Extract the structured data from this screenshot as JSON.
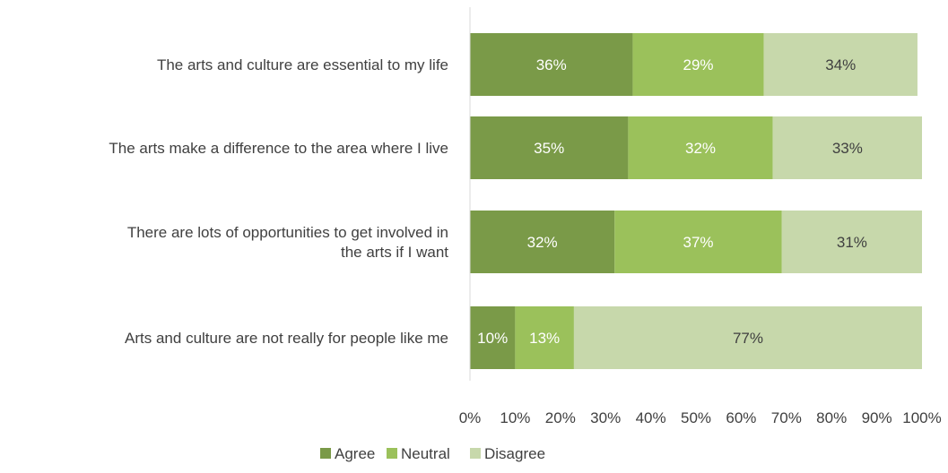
{
  "chart_data": {
    "type": "bar",
    "orientation": "horizontal",
    "stacked": true,
    "categories": [
      "The arts and culture are essential to my life",
      "The arts make a difference to the area where I live",
      "There are lots of opportunities to get involved in the arts if I want",
      "Arts and culture are not really for people like me"
    ],
    "category_lines": [
      [
        "The arts and culture are essential to my life"
      ],
      [
        "The arts make a difference to the area where I live"
      ],
      [
        "There are lots of opportunities to get involved in",
        "the arts if I want"
      ],
      [
        "Arts and culture are not really for people like me"
      ]
    ],
    "series": [
      {
        "name": "Agree",
        "color": "#7a9a48",
        "label_color": "#ffffff",
        "values": [
          36,
          35,
          32,
          10
        ],
        "labels": [
          "36%",
          "35%",
          "32%",
          "10%"
        ]
      },
      {
        "name": "Neutral",
        "color": "#9bc15b",
        "label_color": "#ffffff",
        "values": [
          29,
          32,
          37,
          13
        ],
        "labels": [
          "29%",
          "32%",
          "37%",
          "13%"
        ]
      },
      {
        "name": "Disagree",
        "color": "#c7d8ab",
        "label_color": "#404040",
        "values": [
          34,
          33,
          31,
          77
        ],
        "labels": [
          "34%",
          "33%",
          "31%",
          "77%"
        ]
      }
    ],
    "xlim": [
      0,
      100
    ],
    "xticks": [
      "0%",
      "10%",
      "20%",
      "30%",
      "40%",
      "50%",
      "60%",
      "70%",
      "80%",
      "90%",
      "100%"
    ],
    "grid": false,
    "legend": "bottom",
    "title": "",
    "xlabel": "",
    "ylabel": ""
  }
}
